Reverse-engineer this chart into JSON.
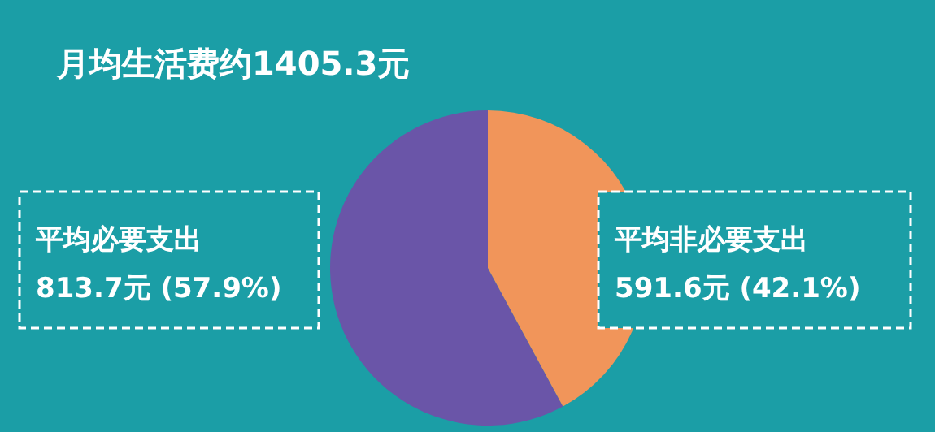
{
  "chart_data": {
    "type": "pie",
    "title": "月均生活费约1405.3元",
    "categories": [
      "平均必要支出",
      "平均非必要支出"
    ],
    "values": [
      813.7,
      591.6
    ],
    "value_labels": [
      "813.7元 (57.9%)",
      "591.6元 (42.1%)"
    ],
    "colors": [
      "#6a55a8",
      "#f1955a"
    ],
    "legend": false
  }
}
